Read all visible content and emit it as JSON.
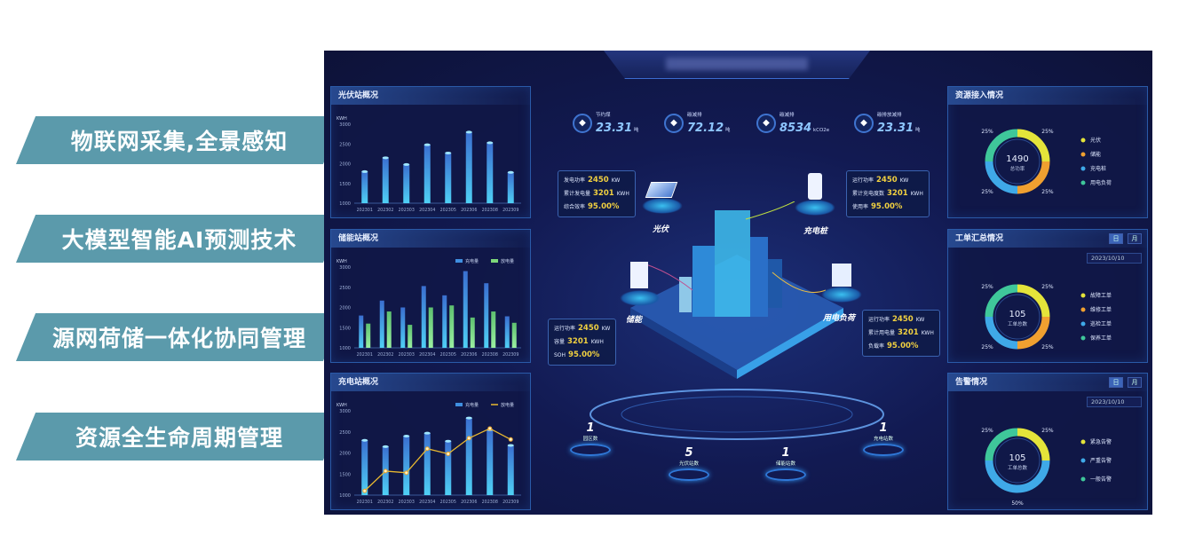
{
  "banners": [
    "物联网采集,全景感知",
    "大模型智能AI预测技术",
    "源网荷储一体化协同管理",
    "资源全生命周期管理"
  ],
  "stats": [
    {
      "icon": "leaf-icon",
      "label": "节约煤",
      "value": "23.31",
      "unit": "吨"
    },
    {
      "icon": "carbon-icon",
      "label": "碳减排",
      "value": "72.12",
      "unit": "吨"
    },
    {
      "icon": "carbon-icon",
      "label": "碳减排",
      "value": "8534",
      "unit": "kCO2e"
    },
    {
      "icon": "tree-icon",
      "label": "碳排放减排",
      "value": "23.31",
      "unit": "吨"
    }
  ],
  "nodes": {
    "pv": {
      "name": "光伏",
      "rows": [
        [
          "发电功率",
          "2450",
          "KW"
        ],
        [
          "累计发电量",
          "3201",
          "KWH"
        ],
        [
          "综合效率",
          "95.00%",
          ""
        ]
      ]
    },
    "charger": {
      "name": "充电桩",
      "rows": [
        [
          "运行功率",
          "2450",
          "KW"
        ],
        [
          "累计充电度数",
          "3201",
          "KWH"
        ],
        [
          "使用率",
          "95.00%",
          ""
        ]
      ]
    },
    "storage": {
      "name": "储能",
      "rows": [
        [
          "运行功率",
          "2450",
          "KW"
        ],
        [
          "容量",
          "3201",
          "KWH"
        ],
        [
          "SOH",
          "95.00%",
          ""
        ]
      ]
    },
    "load": {
      "name": "用电负荷",
      "rows": [
        [
          "运行功率",
          "2450",
          "KW"
        ],
        [
          "累计用电量",
          "3201",
          "KWH"
        ],
        [
          "负载率",
          "95.00%",
          ""
        ]
      ]
    }
  },
  "counts": [
    {
      "value": "1",
      "label": "园区数"
    },
    {
      "value": "5",
      "label": "光伏站数"
    },
    {
      "value": "1",
      "label": "储能站数"
    },
    {
      "value": "1",
      "label": "充电站数"
    }
  ],
  "colors": {
    "bar": "#3fa9e8",
    "green": "#7ed87a",
    "line": "#f0b030",
    "yellow": "#e4e43a",
    "orange": "#f0a030",
    "blue": "#3fa9e8",
    "teal": "#3fc79a"
  },
  "chart_data": [
    {
      "type": "bar",
      "title": "光伏站概况",
      "ylabel": "KWH",
      "ylim": [
        1000,
        3000
      ],
      "yticks": [
        1000,
        1500,
        2000,
        2500,
        3000
      ],
      "categories": [
        "202301",
        "202302",
        "202303",
        "202304",
        "202305",
        "202306",
        "202308",
        "202309"
      ],
      "series": [
        {
          "values": [
            1800,
            2150,
            1980,
            2480,
            2270,
            2800,
            2530,
            1780
          ]
        }
      ]
    },
    {
      "type": "bar",
      "title": "储能站概况",
      "ylabel": "KWH",
      "ylim": [
        1000,
        3000
      ],
      "yticks": [
        1000,
        1500,
        2000,
        2500,
        3000
      ],
      "legend": "top-right",
      "categories": [
        "202301",
        "202302",
        "202303",
        "202304",
        "202305",
        "202306",
        "202308",
        "202309"
      ],
      "series": [
        {
          "name": "充电量",
          "values": [
            1800,
            2170,
            2000,
            2530,
            2300,
            2900,
            2600,
            1780
          ]
        },
        {
          "name": "放电量",
          "values": [
            1600,
            1900,
            1570,
            2000,
            2050,
            1750,
            1900,
            1620
          ]
        }
      ]
    },
    {
      "type": "bar",
      "title": "充电站概况",
      "ylabel": "KWH",
      "ylim": [
        1000,
        3000
      ],
      "yticks": [
        1000,
        1500,
        2000,
        2500,
        3000
      ],
      "legend": "top-right",
      "categories": [
        "202301",
        "202302",
        "202303",
        "202304",
        "202305",
        "202306",
        "202308",
        "202309"
      ],
      "series": [
        {
          "name": "充电量",
          "values": [
            2300,
            2150,
            2400,
            2470,
            2280,
            2830,
            2550,
            2180
          ]
        },
        {
          "name": "放电量",
          "type": "line",
          "values": [
            1100,
            1570,
            1530,
            2100,
            1980,
            2350,
            2580,
            2320
          ]
        }
      ]
    }
  ],
  "donuts": [
    {
      "title": "资源接入情况",
      "total": "1490",
      "total_label": "总功率",
      "items": [
        {
          "name": "光伏",
          "pct": 25
        },
        {
          "name": "储能",
          "pct": 25
        },
        {
          "name": "充电桩",
          "pct": 25
        },
        {
          "name": "用电负荷",
          "pct": 25
        }
      ],
      "colors": [
        "#e4e43a",
        "#f0a030",
        "#3fa9e8",
        "#3fc79a"
      ]
    },
    {
      "title": "工单汇总情况",
      "buttons": [
        "日",
        "月"
      ],
      "date": "2023/10/10",
      "total": "105",
      "total_label": "工单总数",
      "items": [
        {
          "name": "故障工单",
          "pct": 25
        },
        {
          "name": "维修工单",
          "pct": 25
        },
        {
          "name": "巡检工单",
          "pct": 25
        },
        {
          "name": "保养工单",
          "pct": 25
        }
      ],
      "colors": [
        "#e4e43a",
        "#f0a030",
        "#3fa9e8",
        "#3fc79a"
      ]
    },
    {
      "title": "告警情况",
      "buttons": [
        "日",
        "月"
      ],
      "date": "2023/10/10",
      "total": "105",
      "total_label": "工单总数",
      "items": [
        {
          "name": "紧急告警",
          "pct": 25
        },
        {
          "name": "严重告警",
          "pct": 50
        },
        {
          "name": "一般告警",
          "pct": 25
        }
      ],
      "colors": [
        "#e4e43a",
        "#3fa9e8",
        "#3fc79a"
      ],
      "pct_labels": [
        "25%",
        "50%",
        "25%"
      ]
    }
  ]
}
